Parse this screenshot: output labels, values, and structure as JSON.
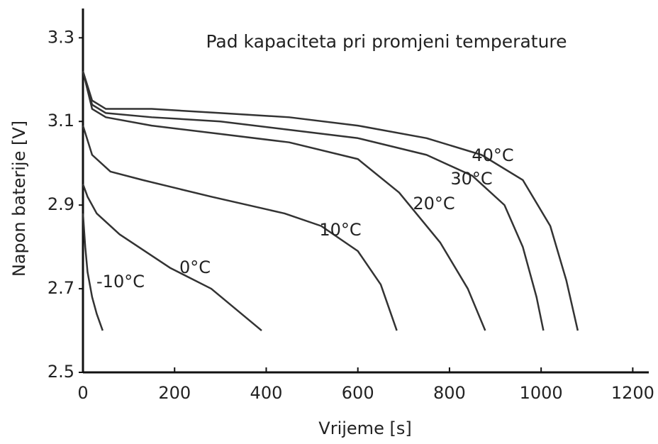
{
  "chart_data": {
    "type": "line",
    "title": "Pad kapaciteta pri promjeni temperature",
    "x_label": "Vrijeme [s]",
    "y_label": "Napon baterije [V]",
    "xlim": [
      0,
      1235
    ],
    "xticks": [
      0,
      200,
      400,
      600,
      800,
      1000,
      1200
    ],
    "ylim": [
      2.5,
      3.37
    ],
    "yticks": [
      2.5,
      2.7,
      2.9,
      3.1,
      3.3
    ],
    "color": "#333333",
    "series": [
      {
        "name": "40°C",
        "x": [
          0,
          20,
          50,
          150,
          300,
          450,
          600,
          750,
          870,
          960,
          1020,
          1055,
          1080
        ],
        "values": [
          3.22,
          3.15,
          3.13,
          3.13,
          3.12,
          3.11,
          3.09,
          3.06,
          3.02,
          2.96,
          2.85,
          2.72,
          2.6
        ]
      },
      {
        "name": "30°C",
        "x": [
          0,
          20,
          50,
          150,
          300,
          450,
          600,
          750,
          850,
          920,
          960,
          990,
          1005
        ],
        "values": [
          3.22,
          3.14,
          3.12,
          3.11,
          3.1,
          3.08,
          3.06,
          3.02,
          2.97,
          2.9,
          2.8,
          2.68,
          2.6
        ]
      },
      {
        "name": "20°C",
        "x": [
          0,
          20,
          50,
          150,
          300,
          450,
          600,
          690,
          780,
          840,
          878
        ],
        "values": [
          3.22,
          3.13,
          3.11,
          3.09,
          3.07,
          3.05,
          3.01,
          2.93,
          2.81,
          2.7,
          2.6
        ]
      },
      {
        "name": "10°C",
        "x": [
          0,
          20,
          60,
          130,
          280,
          440,
          520,
          600,
          650,
          685
        ],
        "values": [
          3.09,
          3.02,
          2.98,
          2.96,
          2.92,
          2.88,
          2.85,
          2.79,
          2.71,
          2.6
        ]
      },
      {
        "name": "0°C",
        "x": [
          0,
          10,
          30,
          80,
          190,
          280,
          390
        ],
        "values": [
          2.95,
          2.92,
          2.88,
          2.83,
          2.75,
          2.7,
          2.6
        ]
      },
      {
        "name": "-10°C",
        "x": [
          0,
          5,
          10,
          20,
          30,
          43
        ],
        "values": [
          2.88,
          2.8,
          2.74,
          2.68,
          2.64,
          2.6
        ]
      }
    ]
  }
}
